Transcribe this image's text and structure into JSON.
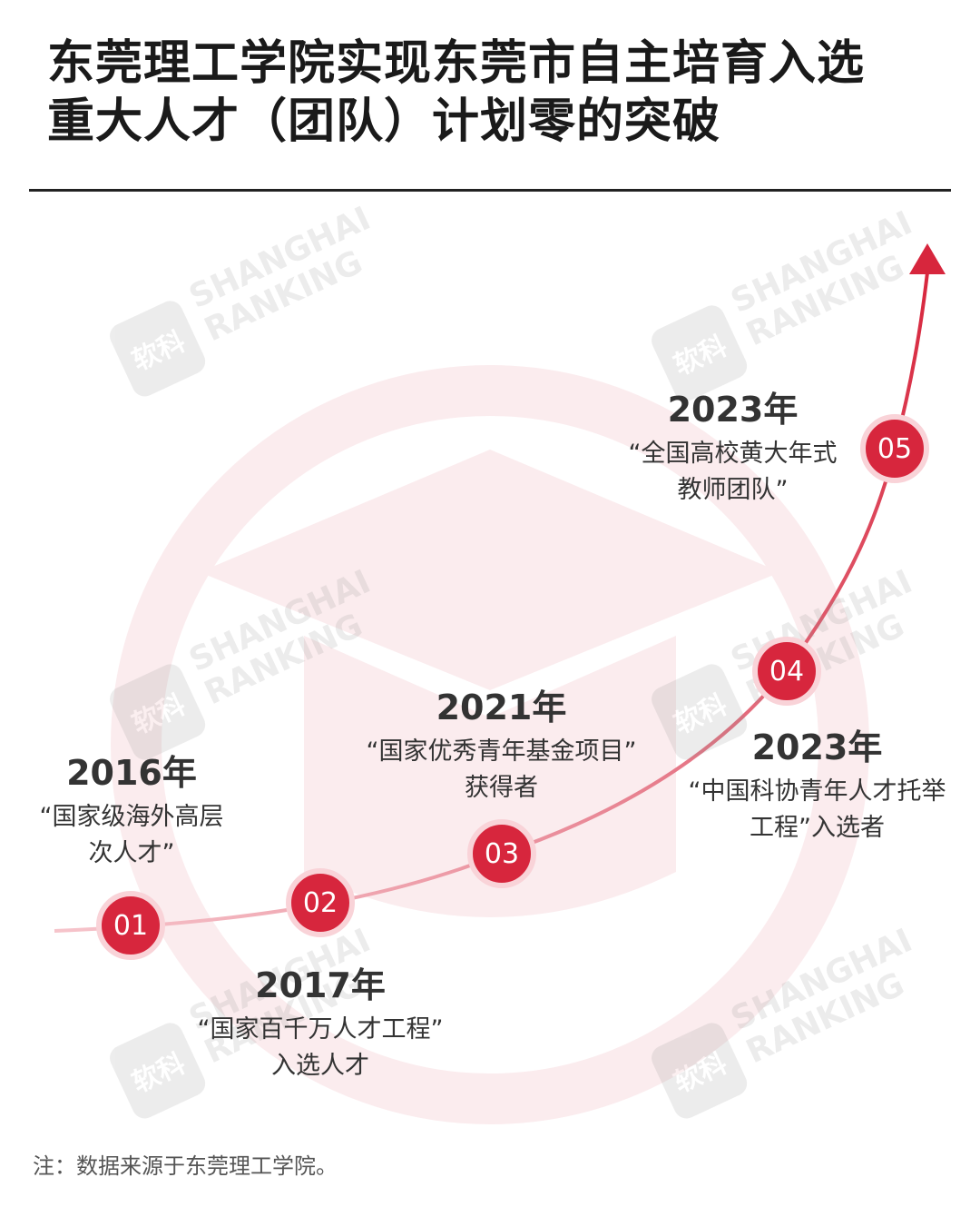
{
  "title": {
    "line1": "东莞理工学院实现东莞市自主培育入选",
    "line2": "重大人才（团队）计划零的突破"
  },
  "watermark": {
    "text_line1": "SHANGHAI",
    "text_line2": "RANKING",
    "logo_text": "软科"
  },
  "milestones": [
    {
      "number": "01",
      "year": "2016年",
      "desc_line1": "“国家级海外高层",
      "desc_line2": "次人才”"
    },
    {
      "number": "02",
      "year": "2017年",
      "desc_line1": "“国家百千万人才工程”",
      "desc_line2": "入选人才"
    },
    {
      "number": "03",
      "year": "2021年",
      "desc_line1": "“国家优秀青年基金项目”",
      "desc_line2": "获得者"
    },
    {
      "number": "04",
      "year": "2023年",
      "desc_line1": "“中国科协青年人才托举",
      "desc_line2": "工程”入选者"
    },
    {
      "number": "05",
      "year": "2023年",
      "desc_line1": "“全国高校黄大年式",
      "desc_line2": "教师团队”"
    }
  ],
  "note": "注：数据来源于东莞理工学院。",
  "colors": {
    "accent": "#d7263d",
    "curve_start": "#f4b8c0",
    "node_ring": "#f9d3d8",
    "background_motif": "#fbecee"
  }
}
